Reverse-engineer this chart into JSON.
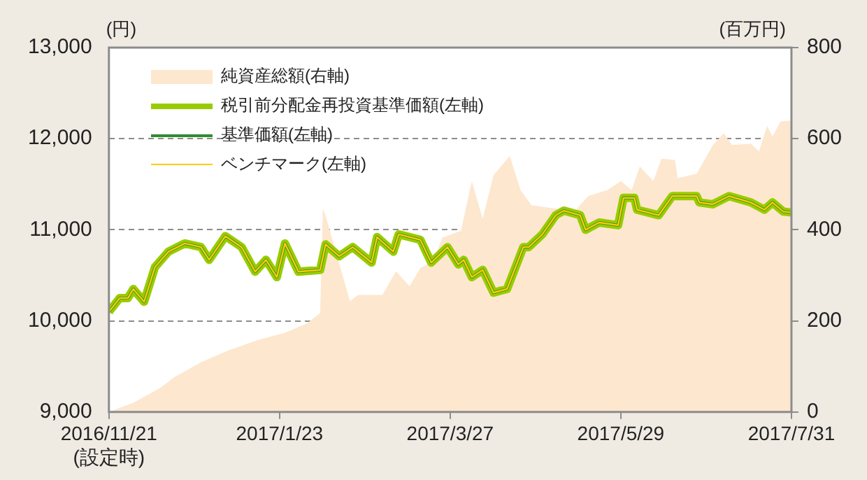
{
  "chart_data": {
    "type": "line",
    "ylabel": "(円)",
    "y2label": "(百万円)",
    "xlim": [
      "2016-11-21",
      "2017-07-31"
    ],
    "xticks": [
      {
        "value": "2016-11-21",
        "label": "2016/11/21\n(設定時)"
      },
      {
        "value": "2017-01-23",
        "label": "2017/1/23"
      },
      {
        "value": "2017-03-27",
        "label": "2017/3/27"
      },
      {
        "value": "2017-05-29",
        "label": "2017/5/29"
      },
      {
        "value": "2017-07-31",
        "label": "2017/7/31"
      }
    ],
    "ylim": [
      9000,
      13000
    ],
    "yticks": [
      {
        "value": 9000,
        "label": "9,000"
      },
      {
        "value": 10000,
        "label": "10,000"
      },
      {
        "value": 11000,
        "label": "11,000"
      },
      {
        "value": 12000,
        "label": "12,000"
      },
      {
        "value": 13000,
        "label": "13,000"
      }
    ],
    "y2lim": [
      0,
      800
    ],
    "y2ticks": [
      0,
      200,
      400,
      600,
      800
    ],
    "grid": "y",
    "legend": "top left",
    "marker": "none",
    "series": [
      {
        "name": "純資産総額(右軸)",
        "type": "area",
        "axis": "y2",
        "color": "#fde7cf",
        "x": [
          "2016-11-21",
          "2016-11-30",
          "2016-12-10",
          "2016-12-15",
          "2016-12-25",
          "2017-01-04",
          "2017-01-15",
          "2017-01-25",
          "2017-02-02",
          "2017-02-07",
          "2017-02-08",
          "2017-02-09",
          "2017-02-18",
          "2017-02-21",
          "2017-03-02",
          "2017-03-07",
          "2017-03-12",
          "2017-03-16",
          "2017-03-21",
          "2017-03-24",
          "2017-03-31",
          "2017-04-04",
          "2017-04-08",
          "2017-04-12",
          "2017-04-18",
          "2017-04-22",
          "2017-04-26",
          "2017-05-04",
          "2017-05-12",
          "2017-05-17",
          "2017-05-24",
          "2017-05-29",
          "2017-06-02",
          "2017-06-05",
          "2017-06-10",
          "2017-06-13",
          "2017-06-18",
          "2017-06-19",
          "2017-06-26",
          "2017-07-02",
          "2017-07-06",
          "2017-07-09",
          "2017-07-16",
          "2017-07-19",
          "2017-07-22",
          "2017-07-24",
          "2017-07-27",
          "2017-07-31"
        ],
        "values": [
          0,
          20,
          53,
          76,
          109,
          135,
          158,
          174,
          194,
          217,
          447,
          431,
          243,
          257,
          257,
          309,
          276,
          316,
          332,
          382,
          398,
          507,
          424,
          520,
          562,
          487,
          454,
          447,
          441,
          474,
          487,
          507,
          487,
          539,
          507,
          556,
          553,
          513,
          523,
          586,
          612,
          586,
          589,
          572,
          628,
          605,
          638,
          640
        ]
      },
      {
        "name": "税引前分配金再投資基準価額(左軸)",
        "type": "line",
        "color": "#99cc00",
        "x": [
          "2016-11-21",
          "2016-11-25",
          "2016-11-28",
          "2016-11-30",
          "2016-12-04",
          "2016-12-08",
          "2016-12-13",
          "2016-12-19",
          "2016-12-25",
          "2016-12-28",
          "2017-01-03",
          "2017-01-09",
          "2017-01-14",
          "2017-01-18",
          "2017-01-22",
          "2017-01-25",
          "2017-01-30",
          "2017-02-07",
          "2017-02-09",
          "2017-02-14",
          "2017-02-19",
          "2017-02-26",
          "2017-02-28",
          "2017-03-06",
          "2017-03-08",
          "2017-03-16",
          "2017-03-20",
          "2017-03-26",
          "2017-03-30",
          "2017-04-01",
          "2017-04-04",
          "2017-04-08",
          "2017-04-12",
          "2017-04-17",
          "2017-04-23",
          "2017-04-25",
          "2017-04-30",
          "2017-05-05",
          "2017-05-08",
          "2017-05-14",
          "2017-05-16",
          "2017-05-21",
          "2017-05-28",
          "2017-05-30",
          "2017-06-03",
          "2017-06-04",
          "2017-06-12",
          "2017-06-17",
          "2017-06-26",
          "2017-06-27",
          "2017-07-02",
          "2017-07-08",
          "2017-07-16",
          "2017-07-21",
          "2017-07-24",
          "2017-07-28",
          "2017-07-31"
        ],
        "values": [
          10100,
          10250,
          10250,
          10350,
          10210,
          10590,
          10760,
          10850,
          10810,
          10670,
          10930,
          10810,
          10540,
          10670,
          10480,
          10850,
          10540,
          10560,
          10840,
          10710,
          10810,
          10640,
          10920,
          10760,
          10950,
          10890,
          10640,
          10810,
          10620,
          10670,
          10480,
          10560,
          10310,
          10350,
          10810,
          10810,
          10950,
          11160,
          11210,
          11160,
          11000,
          11080,
          11050,
          11350,
          11350,
          11220,
          11160,
          11370,
          11370,
          11300,
          11280,
          11370,
          11300,
          11220,
          11300,
          11200,
          11190
        ]
      },
      {
        "name": "基準価額(左軸)",
        "type": "line",
        "color": "#2e8b2e",
        "x": [
          "2016-11-21",
          "2016-11-25",
          "2016-11-28",
          "2016-11-30",
          "2016-12-04",
          "2016-12-08",
          "2016-12-13",
          "2016-12-19",
          "2016-12-25",
          "2016-12-28",
          "2017-01-03",
          "2017-01-09",
          "2017-01-14",
          "2017-01-18",
          "2017-01-22",
          "2017-01-25",
          "2017-01-30",
          "2017-02-07",
          "2017-02-09",
          "2017-02-14",
          "2017-02-19",
          "2017-02-26",
          "2017-02-28",
          "2017-03-06",
          "2017-03-08",
          "2017-03-16",
          "2017-03-20",
          "2017-03-26",
          "2017-03-30",
          "2017-04-01",
          "2017-04-04",
          "2017-04-08",
          "2017-04-12",
          "2017-04-17",
          "2017-04-23",
          "2017-04-25",
          "2017-04-30",
          "2017-05-05",
          "2017-05-08",
          "2017-05-14",
          "2017-05-16",
          "2017-05-21",
          "2017-05-28",
          "2017-05-30",
          "2017-06-03",
          "2017-06-04",
          "2017-06-12",
          "2017-06-17",
          "2017-06-26",
          "2017-06-27",
          "2017-07-02",
          "2017-07-08",
          "2017-07-16",
          "2017-07-21",
          "2017-07-24",
          "2017-07-28",
          "2017-07-31"
        ],
        "values": [
          10100,
          10250,
          10250,
          10350,
          10210,
          10590,
          10760,
          10850,
          10810,
          10670,
          10930,
          10810,
          10540,
          10670,
          10480,
          10850,
          10540,
          10560,
          10840,
          10710,
          10810,
          10640,
          10920,
          10760,
          10950,
          10890,
          10640,
          10810,
          10620,
          10670,
          10480,
          10560,
          10310,
          10350,
          10810,
          10810,
          10950,
          11160,
          11210,
          11160,
          11000,
          11080,
          11050,
          11350,
          11350,
          11220,
          11160,
          11370,
          11370,
          11300,
          11280,
          11370,
          11300,
          11220,
          11300,
          11200,
          11190
        ]
      },
      {
        "name": "ベンチマーク(左軸)",
        "type": "line",
        "color": "#ffcc00",
        "x": [
          "2016-11-21",
          "2016-11-25",
          "2016-11-28",
          "2016-11-30",
          "2016-12-04",
          "2016-12-08",
          "2016-12-13",
          "2016-12-19",
          "2016-12-25",
          "2016-12-28",
          "2017-01-03",
          "2017-01-09",
          "2017-01-14",
          "2017-01-18",
          "2017-01-22",
          "2017-01-25",
          "2017-01-30",
          "2017-02-07",
          "2017-02-09",
          "2017-02-14",
          "2017-02-19",
          "2017-02-26",
          "2017-02-28",
          "2017-03-06",
          "2017-03-08",
          "2017-03-16",
          "2017-03-20",
          "2017-03-26",
          "2017-03-30",
          "2017-04-01",
          "2017-04-04",
          "2017-04-08",
          "2017-04-12",
          "2017-04-17",
          "2017-04-23",
          "2017-04-25",
          "2017-04-30",
          "2017-05-05",
          "2017-05-08",
          "2017-05-14",
          "2017-05-16",
          "2017-05-21",
          "2017-05-28",
          "2017-05-30",
          "2017-06-03",
          "2017-06-04",
          "2017-06-12",
          "2017-06-17",
          "2017-06-26",
          "2017-06-27",
          "2017-07-02",
          "2017-07-08",
          "2017-07-16",
          "2017-07-21",
          "2017-07-24",
          "2017-07-28",
          "2017-07-31"
        ],
        "values": [
          10100,
          10250,
          10250,
          10350,
          10210,
          10590,
          10760,
          10850,
          10810,
          10670,
          10930,
          10810,
          10540,
          10670,
          10480,
          10850,
          10540,
          10560,
          10840,
          10710,
          10810,
          10640,
          10920,
          10760,
          10950,
          10890,
          10640,
          10810,
          10620,
          10670,
          10480,
          10560,
          10310,
          10350,
          10810,
          10810,
          10950,
          11160,
          11210,
          11160,
          11000,
          11080,
          11050,
          11350,
          11350,
          11220,
          11160,
          11370,
          11370,
          11300,
          11280,
          11370,
          11300,
          11220,
          11300,
          11200,
          11190
        ]
      }
    ]
  }
}
